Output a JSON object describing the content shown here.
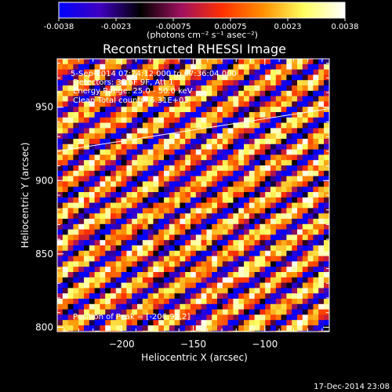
{
  "colorbar": {
    "tick_labels": [
      "-0.0038",
      "-0.0023",
      "-0.00075",
      "0.00075",
      "0.0023",
      "0.0038"
    ],
    "units": "(photons cm⁻² s⁻¹ asec⁻²)",
    "range": [
      -0.0038,
      0.0038
    ],
    "colors": [
      "#0000ff",
      "#4000c0",
      "#000000",
      "#a01060",
      "#ff3000",
      "#ff9000",
      "#ffff60",
      "#ffffff"
    ]
  },
  "title": "Reconstructed RHESSI Image",
  "info": {
    "time_range": "5-Sep-2014 07:24:12.000 to 07:36:04.000",
    "detectors": "Detectors: 3F 6F 9F, Att 1",
    "energy": "Energy Range: 25.0 - 50.0 keV",
    "clean": "Clean     Total counts: 6.31E+03",
    "peak": "Position of Peak = [-206.93,2]"
  },
  "footer_timestamp": "17-Dec-2014 23:08",
  "chart_data": {
    "type": "heatmap",
    "title": "Reconstructed RHESSI Image",
    "xlabel": "Heliocentric X (arcsec)",
    "ylabel": "Heliocentric Y (arcsec)",
    "xlim": [
      -245,
      -55
    ],
    "ylim": [
      797,
      983
    ],
    "x_ticks": [
      -200,
      -150,
      -100
    ],
    "y_ticks": [
      800,
      850,
      900,
      950
    ],
    "x_tick_labels": [
      "−200",
      "−150",
      "−100"
    ],
    "y_tick_labels": [
      "800",
      "850",
      "900",
      "950"
    ],
    "value_range": [
      -0.0038,
      0.0038
    ],
    "pattern": "diagonal fringe stripes, intensity peaking in yellow/white bands",
    "overlay_line": {
      "x": [
        -245,
        -55
      ],
      "y": [
        920,
        949
      ]
    }
  }
}
